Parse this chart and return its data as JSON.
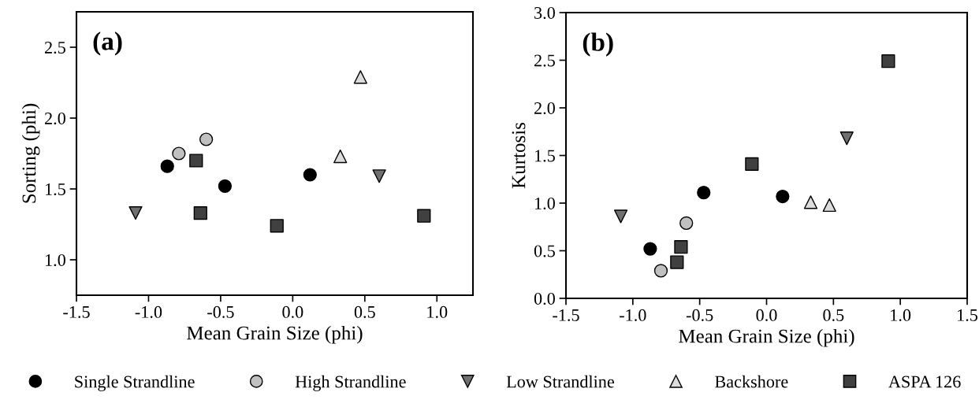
{
  "chart_data": [
    {
      "type": "scatter",
      "title": "(a)",
      "xlabel": "Mean Grain Size (phi)",
      "ylabel": "Sorting (phi)",
      "xlim": [
        -1.5,
        1.25
      ],
      "ylim": [
        0.75,
        2.75
      ],
      "xticks": [
        -1.5,
        {
          "value": -1,
          "label": "-1.0"
        },
        -0.5,
        {
          "value": 0,
          "label": "0.0"
        },
        0.5,
        {
          "value": 1,
          "label": "1.0"
        }
      ],
      "yticks": [
        {
          "value": 1,
          "label": "1.0"
        },
        1.5,
        {
          "value": 2,
          "label": "2.0"
        },
        2.5
      ],
      "grid": false,
      "legend": "bottom",
      "series": [
        {
          "name": "Single Strandline",
          "color": "#000000",
          "marker": "circle",
          "x": [
            -0.87,
            -0.47,
            0.12
          ],
          "values": [
            1.66,
            1.52,
            1.6
          ]
        },
        {
          "name": "High Strandline",
          "color": "#c0c0c0",
          "marker": "circle",
          "x": [
            -0.79,
            -0.6
          ],
          "values": [
            1.75,
            1.85
          ]
        },
        {
          "name": "Low Strandline",
          "color": "#707070",
          "marker": "triangle_down",
          "x": [
            -1.09,
            0.6
          ],
          "values": [
            1.33,
            1.59
          ]
        },
        {
          "name": "Backshore",
          "color": "#dcdcdc",
          "marker": "triangle",
          "x": [
            0.33,
            0.47
          ],
          "values": [
            1.73,
            2.29
          ]
        },
        {
          "name": "ASPA 126",
          "color": "#404040",
          "marker": "square",
          "x": [
            -0.67,
            -0.64,
            -0.11,
            0.91
          ],
          "values": [
            1.7,
            1.33,
            1.24,
            1.31
          ]
        }
      ]
    },
    {
      "type": "scatter",
      "title": "(b)",
      "xlabel": "Mean Grain Size (phi)",
      "ylabel": "Kurtosis",
      "xlim": [
        -1.5,
        1.5
      ],
      "ylim": [
        0.0,
        3.0
      ],
      "xticks": [
        -1.5,
        {
          "value": -1,
          "label": "-1.0"
        },
        -0.5,
        {
          "value": 0,
          "label": "0.0"
        },
        0.5,
        {
          "value": 1,
          "label": "1.0"
        },
        1.5
      ],
      "yticks": [
        {
          "value": 0,
          "label": "0.0"
        },
        0.5,
        {
          "value": 1,
          "label": "1.0"
        },
        1.5,
        {
          "value": 2,
          "label": "2.0"
        },
        2.5,
        {
          "value": 3,
          "label": "3.0"
        }
      ],
      "grid": false,
      "series": [
        {
          "color": "#000000",
          "marker": "circle",
          "x": [
            -0.87,
            -0.47,
            0.12
          ],
          "values": [
            0.52,
            1.11,
            1.07
          ]
        },
        {
          "color": "#c0c0c0",
          "marker": "circle",
          "x": [
            -0.79,
            -0.6
          ],
          "values": [
            0.29,
            0.79
          ]
        },
        {
          "color": "#707070",
          "marker": "triangle_down",
          "x": [
            -1.09,
            0.6
          ],
          "values": [
            0.86,
            1.68
          ]
        },
        {
          "color": "#dcdcdc",
          "marker": "triangle",
          "x": [
            0.33,
            0.47
          ],
          "values": [
            1.01,
            0.98
          ]
        },
        {
          "color": "#404040",
          "marker": "square",
          "x": [
            -0.67,
            -0.64,
            -0.11,
            0.91
          ],
          "values": [
            0.38,
            0.54,
            1.41,
            2.49
          ]
        }
      ]
    }
  ]
}
